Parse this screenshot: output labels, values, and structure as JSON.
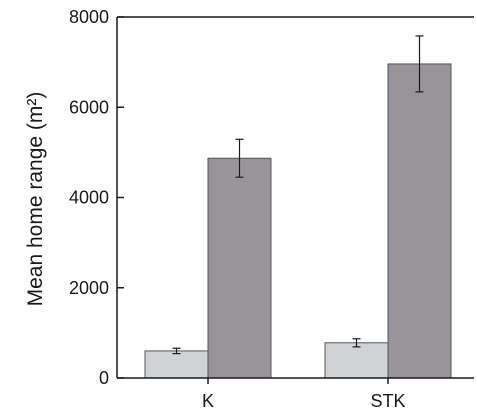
{
  "chart_data": {
    "type": "bar",
    "categories": [
      "K",
      "STK"
    ],
    "series": [
      {
        "color": "#d0d3d4",
        "values": [
          600,
          780
        ],
        "errors": [
          60,
          90
        ]
      },
      {
        "color": "#97959a",
        "values": [
          4870,
          6960
        ],
        "errors": [
          420,
          620
        ]
      }
    ],
    "title": "",
    "xlabel": "",
    "ylabel": "Mean home range (m²)",
    "ylim": [
      0,
      8000
    ],
    "yticks": [
      0,
      2000,
      4000,
      6000,
      8000
    ],
    "ytick_labels": [
      "0",
      "2000",
      "4000",
      "6000",
      "8000"
    ],
    "grid": false,
    "legend": "none",
    "colors": {
      "axis": "#1a1a1a",
      "bar_stroke": "#555555",
      "error_bar": "#1a1a1a"
    }
  }
}
